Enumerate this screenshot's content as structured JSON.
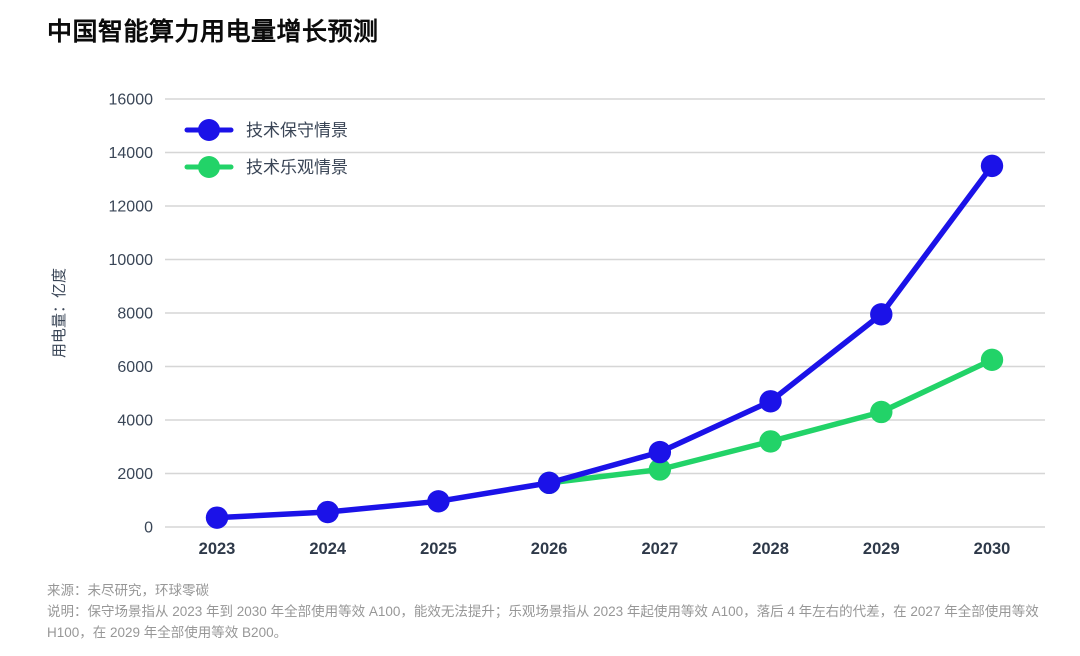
{
  "page": {
    "title": "中国智能算力用电量增长预测"
  },
  "chart_data": {
    "type": "line",
    "title": "中国智能算力用电量增长预测",
    "xlabel": "",
    "ylabel": "用电量：亿度",
    "categories": [
      "2023",
      "2024",
      "2025",
      "2026",
      "2027",
      "2028",
      "2029",
      "2030"
    ],
    "series": [
      {
        "name": "技术保守情景",
        "color": "#1b12e8",
        "marker": "circle",
        "values": [
          350,
          560,
          960,
          1650,
          2800,
          4700,
          7950,
          13500
        ]
      },
      {
        "name": "技术乐观情景",
        "color": "#22d368",
        "marker": "circle",
        "values": [
          null,
          null,
          null,
          1650,
          2150,
          3200,
          4300,
          6250
        ]
      }
    ],
    "ylim": [
      0,
      16000
    ],
    "yticks": [
      0,
      2000,
      4000,
      6000,
      8000,
      10000,
      12000,
      14000,
      16000
    ],
    "grid": true,
    "legend_position": "top-left"
  },
  "notes": {
    "source": "来源：未尽研究，环球零碳",
    "description": "说明：保守场景指从 2023 年到 2030 年全部使用等效 A100，能效无法提升；乐观场景指从 2023 年起使用等效 A100，落后 4 年左右的代差，在 2027 年全部使用等效 H100，在 2029 年全部使用等效 B200。"
  },
  "theme": {
    "grid_color": "#d6d6d6",
    "ytick_color": "#3a4657",
    "xtick_color": "#2e3949",
    "legend_text_color": "#3a4556",
    "title_color": "#0b0b0b",
    "notes_color": "#979797",
    "background": "#ffffff"
  }
}
